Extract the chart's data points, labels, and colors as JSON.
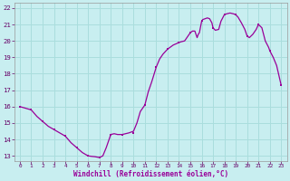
{
  "title": "",
  "xlabel": "Windchill (Refroidissement éolien,°C)",
  "ylabel": "",
  "background_color": "#c8eef0",
  "grid_color": "#aadddd",
  "line_color": "#990099",
  "marker_color": "#990099",
  "xlim": [
    -0.5,
    23.5
  ],
  "ylim": [
    12.7,
    22.3
  ],
  "yticks": [
    13,
    14,
    15,
    16,
    17,
    18,
    19,
    20,
    21,
    22
  ],
  "xticks": [
    0,
    1,
    2,
    3,
    4,
    5,
    6,
    7,
    8,
    9,
    10,
    11,
    12,
    13,
    14,
    15,
    16,
    17,
    18,
    19,
    20,
    21,
    22,
    23
  ],
  "x_marks": [
    0,
    1,
    2,
    3,
    4,
    5,
    6,
    7,
    8,
    9,
    10,
    11,
    12,
    13,
    14,
    15,
    16,
    17,
    18,
    19,
    20,
    21,
    22,
    23
  ],
  "y_marks": [
    16.0,
    15.8,
    15.1,
    14.6,
    14.2,
    13.5,
    13.0,
    12.9,
    14.3,
    14.3,
    14.4,
    16.1,
    18.4,
    19.5,
    19.9,
    20.5,
    21.2,
    20.8,
    21.6,
    21.6,
    20.3,
    21.0,
    19.4,
    17.3
  ],
  "x_full": [
    0,
    0.5,
    1,
    1.5,
    2,
    2.5,
    3,
    3.5,
    4,
    4.5,
    5,
    5.5,
    6,
    6.3,
    6.6,
    7,
    7.3,
    7.6,
    8,
    8.3,
    8.6,
    9,
    9.3,
    9.6,
    10,
    10.3,
    10.6,
    11,
    11.3,
    11.6,
    12,
    12.3,
    12.6,
    13,
    13.2,
    13.5,
    14,
    14.2,
    14.5,
    15,
    15.2,
    15.4,
    15.6,
    15.7,
    15.8,
    16,
    16.1,
    16.3,
    16.5,
    16.7,
    16.9,
    17,
    17.2,
    17.5,
    17.7,
    18,
    18.2,
    18.5,
    18.8,
    19,
    19.2,
    19.5,
    19.8,
    20,
    20.2,
    20.5,
    20.8,
    21,
    21.3,
    21.6,
    21.9,
    22,
    22.3,
    22.6,
    23
  ],
  "y_full": [
    16.0,
    15.9,
    15.8,
    15.4,
    15.1,
    14.8,
    14.6,
    14.4,
    14.2,
    13.8,
    13.5,
    13.2,
    13.0,
    12.97,
    12.95,
    12.9,
    13.0,
    13.5,
    14.3,
    14.35,
    14.3,
    14.3,
    14.35,
    14.4,
    14.5,
    15.0,
    15.7,
    16.1,
    16.9,
    17.5,
    18.4,
    18.9,
    19.2,
    19.5,
    19.6,
    19.75,
    19.9,
    19.95,
    20.0,
    20.5,
    20.6,
    20.6,
    20.2,
    20.4,
    20.5,
    21.2,
    21.3,
    21.35,
    21.4,
    21.35,
    21.1,
    20.8,
    20.65,
    20.7,
    21.2,
    21.6,
    21.65,
    21.7,
    21.65,
    21.6,
    21.45,
    21.1,
    20.7,
    20.3,
    20.2,
    20.4,
    20.7,
    21.0,
    20.8,
    20.0,
    19.6,
    19.4,
    19.0,
    18.5,
    17.3
  ]
}
